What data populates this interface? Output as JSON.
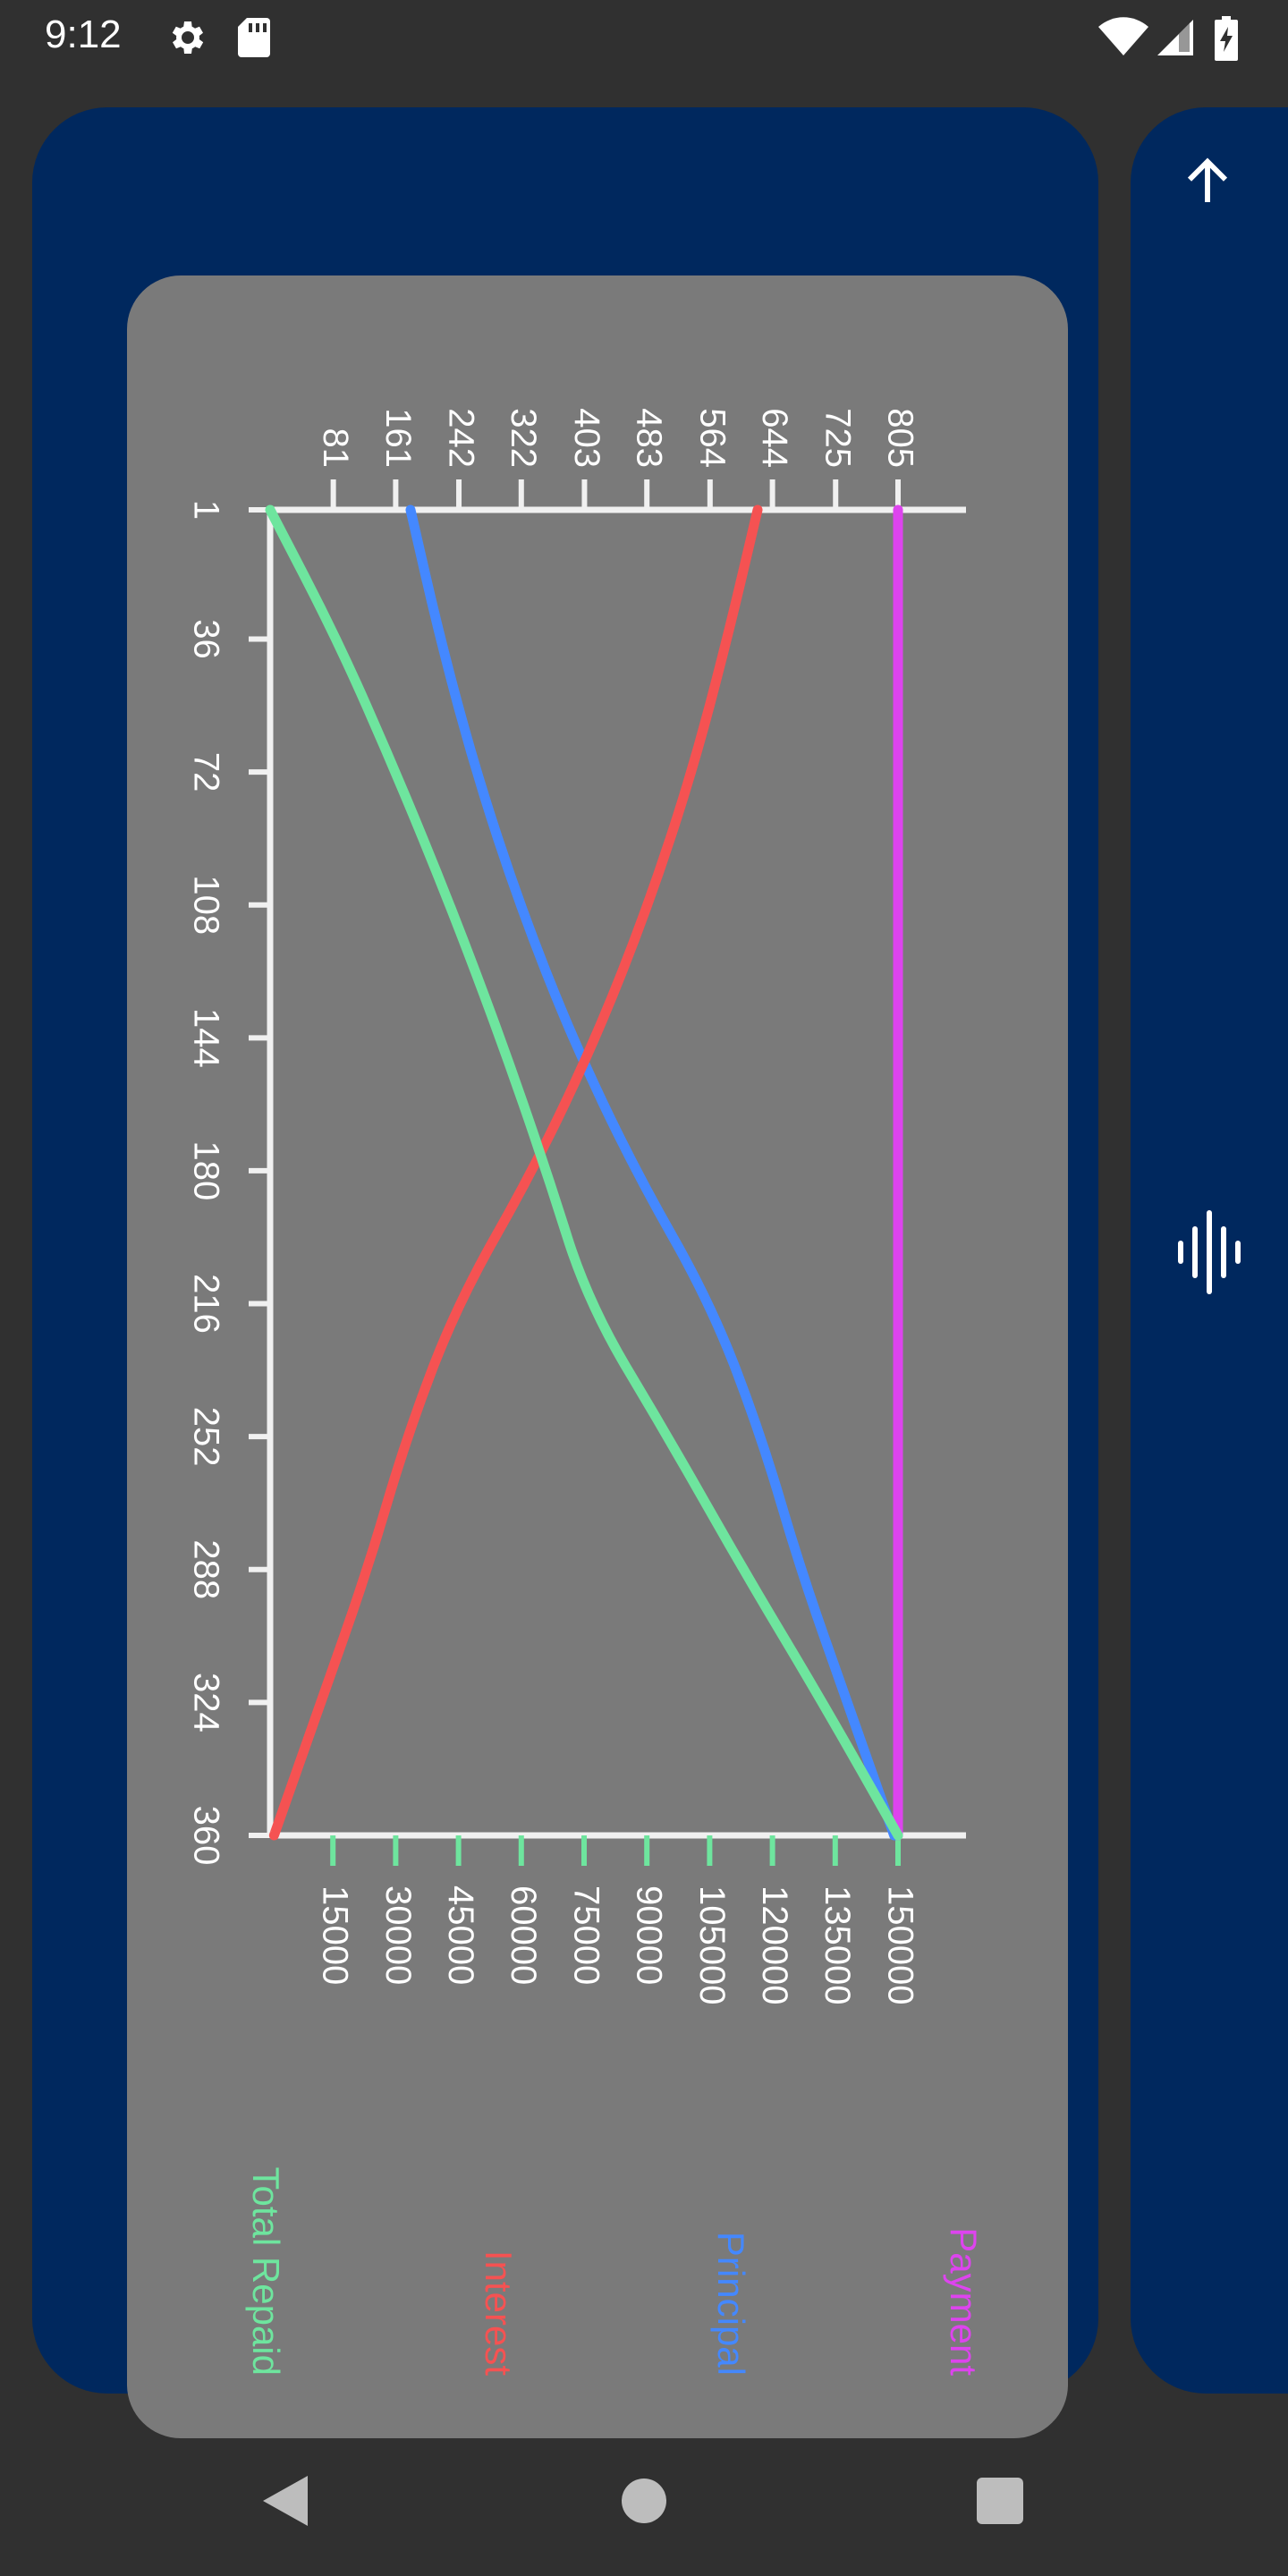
{
  "status_bar": {
    "time": "9:12",
    "icons": [
      "gear-icon",
      "sd-card-icon",
      "wifi-icon",
      "cell-signal-icon",
      "battery-charging-icon"
    ]
  },
  "side_panel": {
    "icons": [
      "arrow-up-icon",
      "waveform-icon"
    ]
  },
  "nav_bar": {
    "icons": [
      "back-icon",
      "home-icon",
      "recents-icon"
    ]
  },
  "colors": {
    "background": "#303030",
    "card": "#00285e",
    "chart_panel": "#7a7a7a",
    "axis": "#f0f0f0",
    "total_repaid": "#6ee59e",
    "interest": "#f55252",
    "principal": "#4488ff",
    "payment": "#dd44ee"
  },
  "chart_data": {
    "type": "line",
    "orientation": "rotated 90 degrees clockwise",
    "months_axis": {
      "ticks": [
        "1",
        "36",
        "72",
        "108",
        "144",
        "180",
        "216",
        "252",
        "288",
        "324",
        "360"
      ],
      "range": [
        1,
        360
      ]
    },
    "payment_axis": {
      "ticks": [
        "81",
        "161",
        "242",
        "322",
        "403",
        "483",
        "564",
        "644",
        "725",
        "805"
      ],
      "range": [
        0,
        805
      ]
    },
    "amount_axis": {
      "ticks": [
        "15000",
        "30000",
        "45000",
        "60000",
        "75000",
        "90000",
        "105000",
        "120000",
        "135000",
        "150000"
      ],
      "range": [
        0,
        150000
      ]
    },
    "legend": [
      "Payment",
      "Principal",
      "Interest",
      "Total Repaid"
    ],
    "series": [
      {
        "name": "Payment",
        "color_key": "payment",
        "x": [
          1,
          360
        ],
        "y": [
          805,
          805
        ]
      },
      {
        "name": "Principal",
        "color_key": "principal",
        "x": [
          1,
          36,
          72,
          108,
          144,
          180,
          216,
          252,
          288,
          324,
          360
        ],
        "y": [
          180,
          218,
          264,
          320,
          387,
          468,
          565,
          630,
          680,
          740,
          800
        ]
      },
      {
        "name": "Interest",
        "color_key": "interest",
        "x": [
          1,
          36,
          72,
          108,
          144,
          180,
          216,
          252,
          288,
          324,
          360
        ],
        "y": [
          625,
          586,
          541,
          485,
          418,
          337,
          240,
          175,
          125,
          65,
          5
        ]
      },
      {
        "name": "Total Repaid",
        "color_key": "total_repaid",
        "x": [
          1,
          36,
          72,
          108,
          144,
          180,
          216,
          252,
          288,
          324,
          360
        ],
        "y": [
          0,
          16000,
          30000,
          43000,
          55000,
          66000,
          76000,
          95000,
          113000,
          132000,
          150000
        ]
      }
    ]
  }
}
